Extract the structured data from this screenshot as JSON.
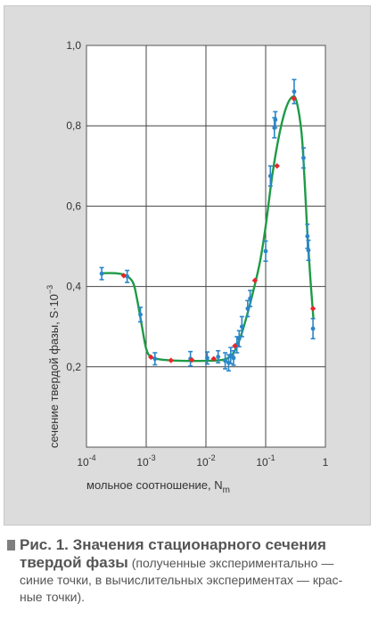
{
  "chart_data": {
    "type": "scatter",
    "x_scale": "log",
    "x_range": [
      0.0001,
      1
    ],
    "y_range": [
      0,
      1.0
    ],
    "grid": true,
    "x_tick_labels": [
      {
        "base": "10",
        "exp": "-4"
      },
      {
        "base": "10",
        "exp": "-3"
      },
      {
        "base": "10",
        "exp": "-2"
      },
      {
        "base": "10",
        "exp": "-1"
      },
      {
        "base": "1",
        "exp": ""
      }
    ],
    "y_tick_labels": [
      "0,2",
      "0,4",
      "0,6",
      "0,8",
      "1,0"
    ],
    "xlabel": {
      "text": "мольное соотношение, N",
      "sub": "m"
    },
    "ylabel": {
      "text": "сечение твердой фазы, S·10",
      "sup": "−3"
    },
    "series": [
      {
        "color": "#2a86c8",
        "points": [
          {
            "x": 0.00018,
            "y": 0.432,
            "err": 0.015
          },
          {
            "x": 0.00048,
            "y": 0.425,
            "err": 0.015
          },
          {
            "x": 0.0008,
            "y": 0.33,
            "err": 0.018
          },
          {
            "x": 0.0014,
            "y": 0.22,
            "err": 0.015
          },
          {
            "x": 0.0055,
            "y": 0.22,
            "err": 0.018
          },
          {
            "x": 0.0105,
            "y": 0.222,
            "err": 0.015
          },
          {
            "x": 0.016,
            "y": 0.225,
            "err": 0.015
          },
          {
            "x": 0.021,
            "y": 0.215,
            "err": 0.02
          },
          {
            "x": 0.024,
            "y": 0.21,
            "err": 0.02
          },
          {
            "x": 0.026,
            "y": 0.228,
            "err": 0.02
          },
          {
            "x": 0.029,
            "y": 0.222,
            "err": 0.018
          },
          {
            "x": 0.033,
            "y": 0.255,
            "err": 0.02
          },
          {
            "x": 0.036,
            "y": 0.27,
            "err": 0.02
          },
          {
            "x": 0.04,
            "y": 0.3,
            "err": 0.025
          },
          {
            "x": 0.05,
            "y": 0.345,
            "err": 0.02
          },
          {
            "x": 0.055,
            "y": 0.37,
            "err": 0.02
          },
          {
            "x": 0.1,
            "y": 0.488,
            "err": 0.025
          },
          {
            "x": 0.12,
            "y": 0.675,
            "err": 0.025
          },
          {
            "x": 0.14,
            "y": 0.795,
            "err": 0.025
          },
          {
            "x": 0.145,
            "y": 0.815,
            "err": 0.02
          },
          {
            "x": 0.3,
            "y": 0.885,
            "err": 0.03
          },
          {
            "x": 0.43,
            "y": 0.72,
            "err": 0.025
          },
          {
            "x": 0.5,
            "y": 0.525,
            "err": 0.03
          },
          {
            "x": 0.52,
            "y": 0.49,
            "err": 0.025
          },
          {
            "x": 0.62,
            "y": 0.295,
            "err": 0.025
          }
        ]
      },
      {
        "color": "#e8262a",
        "points": [
          {
            "x": 0.00042,
            "y": 0.427
          },
          {
            "x": 0.0012,
            "y": 0.224
          },
          {
            "x": 0.0026,
            "y": 0.216
          },
          {
            "x": 0.0058,
            "y": 0.217
          },
          {
            "x": 0.0135,
            "y": 0.22
          },
          {
            "x": 0.0305,
            "y": 0.252
          },
          {
            "x": 0.066,
            "y": 0.415
          },
          {
            "x": 0.155,
            "y": 0.7
          },
          {
            "x": 0.295,
            "y": 0.868
          },
          {
            "x": 0.62,
            "y": 0.345
          }
        ]
      }
    ],
    "curve": {
      "color": "#1f9b46",
      "points": [
        [
          0.00017,
          0.433
        ],
        [
          0.0003,
          0.433
        ],
        [
          0.00045,
          0.428
        ],
        [
          0.0006,
          0.41
        ],
        [
          0.0007,
          0.37
        ],
        [
          0.00085,
          0.3
        ],
        [
          0.001,
          0.245
        ],
        [
          0.0012,
          0.225
        ],
        [
          0.0018,
          0.218
        ],
        [
          0.004,
          0.215
        ],
        [
          0.01,
          0.215
        ],
        [
          0.02,
          0.218
        ],
        [
          0.028,
          0.232
        ],
        [
          0.035,
          0.26
        ],
        [
          0.045,
          0.31
        ],
        [
          0.06,
          0.38
        ],
        [
          0.08,
          0.46
        ],
        [
          0.1,
          0.55
        ],
        [
          0.13,
          0.68
        ],
        [
          0.17,
          0.78
        ],
        [
          0.22,
          0.845
        ],
        [
          0.28,
          0.872
        ],
        [
          0.33,
          0.86
        ],
        [
          0.4,
          0.78
        ],
        [
          0.45,
          0.66
        ],
        [
          0.5,
          0.53
        ],
        [
          0.56,
          0.42
        ],
        [
          0.63,
          0.32
        ]
      ]
    }
  },
  "caption": {
    "lead": "Рис. 1. Значения стационарного сечения",
    "lead2": "твердой фазы",
    "sub1": " (полученные экспериментально —",
    "sub2": "синие точки, в вычислительных экспериментах — крас-",
    "sub3": "ные точки)."
  }
}
